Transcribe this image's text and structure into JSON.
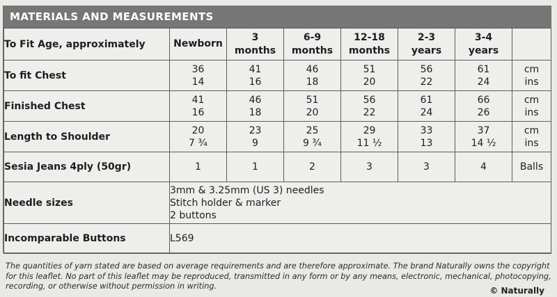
{
  "header": {
    "title": "MATERIALS AND MEASUREMENTS"
  },
  "table": {
    "age_label": "To Fit Age, approximately",
    "ages": [
      [
        "Newborn"
      ],
      [
        "3",
        "months"
      ],
      [
        "6-9",
        "months"
      ],
      [
        "12-18",
        "months"
      ],
      [
        "2-3",
        "years"
      ],
      [
        "3-4",
        "years"
      ]
    ],
    "rows": [
      {
        "label": "To fit Chest",
        "values": [
          [
            "36",
            "14"
          ],
          [
            "41",
            "16"
          ],
          [
            "46",
            "18"
          ],
          [
            "51",
            "20"
          ],
          [
            "56",
            "22"
          ],
          [
            "61",
            "24"
          ]
        ],
        "units": [
          "cm",
          "ins"
        ]
      },
      {
        "label": "Finished Chest",
        "values": [
          [
            "41",
            "16"
          ],
          [
            "46",
            "18"
          ],
          [
            "51",
            "20"
          ],
          [
            "56",
            "22"
          ],
          [
            "61",
            "24"
          ],
          [
            "66",
            "26"
          ]
        ],
        "units": [
          "cm",
          "ins"
        ]
      },
      {
        "label": "Length to Shoulder",
        "values": [
          [
            "20",
            "7 ¾"
          ],
          [
            "23",
            "9"
          ],
          [
            "25",
            "9 ¾"
          ],
          [
            "29",
            "11 ½"
          ],
          [
            "33",
            "13"
          ],
          [
            "37",
            "14 ½"
          ]
        ],
        "units": [
          "cm",
          "ins"
        ]
      },
      {
        "label": "Sesia Jeans 4ply (50gr)",
        "values": [
          [
            "1"
          ],
          [
            "1"
          ],
          [
            "2"
          ],
          [
            "3"
          ],
          [
            "3"
          ],
          [
            "4"
          ]
        ],
        "units": [
          "Balls"
        ]
      }
    ],
    "needles": {
      "label": "Needle sizes",
      "lines": [
        "3mm & 3.25mm (US 3) needles",
        "Stitch holder & marker",
        "2 buttons"
      ]
    },
    "buttons": {
      "label": "Incomparable Buttons",
      "value": "L569"
    }
  },
  "footer": {
    "lines": [
      "The quantities of yarn stated are based on average requirements and are therefore approximate. The brand Naturally owns the copyright",
      "for this leaflet. No part of this leaflet may be reproduced, transmitted in any form or by any means, electronic, mechanical, photocopying,",
      "recording, or otherwise without permission in writing."
    ],
    "copyright": "© Naturally"
  }
}
